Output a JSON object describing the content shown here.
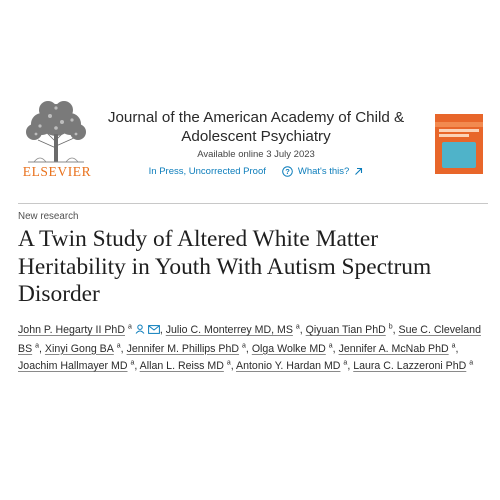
{
  "publisher": {
    "name": "ELSEVIER",
    "logo_icon": "elsevier-tree-logo"
  },
  "journal": {
    "title_line1": "Journal of the American Academy of Child &",
    "title_line2": "Adolescent Psychiatry",
    "available": "Available online 3 July 2023",
    "status": "In Press, Uncorrected Proof",
    "whats_this": "What's this?",
    "cover_icon": "journal-cover-thumbnail"
  },
  "article": {
    "type": "New research",
    "title": "A Twin Study of Altered White Matter Heritability in Youth With Autism Spectrum Disorder"
  },
  "authors": [
    {
      "name": "John P. Hegarty II PhD",
      "aff": "a",
      "sep": "",
      "icons": true
    },
    {
      "name": "Julio C. Monterrey MD, MS",
      "aff": "a",
      "sep": ","
    },
    {
      "name": "Qiyuan Tian PhD",
      "aff": "b",
      "sep": ","
    },
    {
      "name": "Sue C. Cleveland BS",
      "aff": "a",
      "sep": ","
    },
    {
      "name": "Xinyi Gong BA",
      "aff": "a",
      "sep": ","
    },
    {
      "name": "Jennifer M. Phillips PhD",
      "aff": "a",
      "sep": ","
    },
    {
      "name": "Olga Wolke MD",
      "aff": "a",
      "sep": ","
    },
    {
      "name": "Jennifer A. McNab PhD",
      "aff": "a",
      "sep": ","
    },
    {
      "name": "Joachim Hallmayer MD",
      "aff": "a",
      "sep": ","
    },
    {
      "name": "Allan L. Reiss MD",
      "aff": "a",
      "sep": ","
    },
    {
      "name": "Antonio Y. Hardan MD",
      "aff": "a",
      "sep": ","
    },
    {
      "name": "Laura C. Lazzeroni PhD",
      "aff": "a",
      "sep": ""
    }
  ]
}
